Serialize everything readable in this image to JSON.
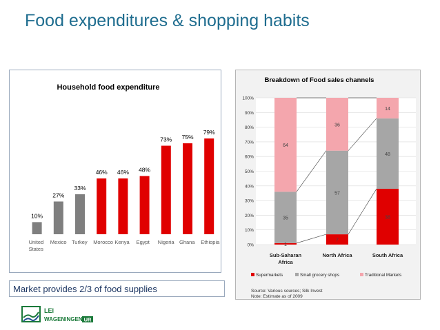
{
  "slide": {
    "title": "Food expenditures & shopping habits",
    "caption": "Market provides 2/3 of food supplies",
    "logo": {
      "line1": "LEI",
      "line2_a": "WAGENINGEN",
      "line2_b": "UR",
      "icon": "wageningen-flag-logo-icon"
    }
  },
  "colors": {
    "title": "#1f6d8f",
    "gray": "#7f7f7f",
    "red": "#e00000",
    "pink": "#f4a6ad",
    "mid_gray": "#a6a6a6"
  },
  "chart_data": [
    {
      "type": "bar",
      "title": "Household food expenditure",
      "categories": [
        "United States",
        "Mexico",
        "Turkey",
        "Morocco",
        "Kenya",
        "Egypt",
        "Nigeria",
        "Ghana",
        "Ethiopia"
      ],
      "category_lines": [
        [
          "United",
          "States"
        ],
        [
          "Mexico"
        ],
        [
          "Turkey"
        ],
        [
          "Morocco"
        ],
        [
          "Kenya"
        ],
        [
          "Egypt"
        ],
        [
          "Nigeria"
        ],
        [
          "Ghana"
        ],
        [
          "Ethiopia"
        ]
      ],
      "values": [
        10,
        27,
        33,
        46,
        46,
        48,
        73,
        75,
        79
      ],
      "labels": [
        "10%",
        "27%",
        "33%",
        "46%",
        "46%",
        "48%",
        "73%",
        "75%",
        "79%"
      ],
      "bar_colors": [
        "gray",
        "gray",
        "gray",
        "red",
        "red",
        "red",
        "red",
        "red",
        "red"
      ],
      "ylim": [
        0,
        100
      ]
    },
    {
      "type": "bar",
      "stacked": true,
      "title": "Breakdown of Food sales channels",
      "categories": [
        "Sub-Saharan Africa",
        "North Africa",
        "South Africa"
      ],
      "category_lines": [
        [
          "Sub-Saharan",
          "Africa"
        ],
        [
          "North Africa"
        ],
        [
          "South Africa"
        ]
      ],
      "series": [
        {
          "name": "Supermarkets",
          "values": [
            1,
            7,
            38
          ],
          "labels": [
            "1",
            "7",
            "38"
          ],
          "color": "red"
        },
        {
          "name": "Small grocery shops",
          "values": [
            35,
            57,
            48
          ],
          "labels": [
            "35",
            "57",
            "48"
          ],
          "color": "mid_gray"
        },
        {
          "name": "Traditional Markets",
          "values": [
            64,
            36,
            14
          ],
          "labels": [
            "64",
            "36",
            "14"
          ],
          "color": "pink"
        }
      ],
      "yticks": [
        "0%",
        "10%",
        "20%",
        "30%",
        "40%",
        "50%",
        "60%",
        "70%",
        "80%",
        "90%",
        "100%"
      ],
      "ylim": [
        0,
        100
      ],
      "legend_placement": "bottom",
      "source": "Source: Various sources; Silk Invest",
      "note": "Note: Estimate as of 2009"
    }
  ]
}
